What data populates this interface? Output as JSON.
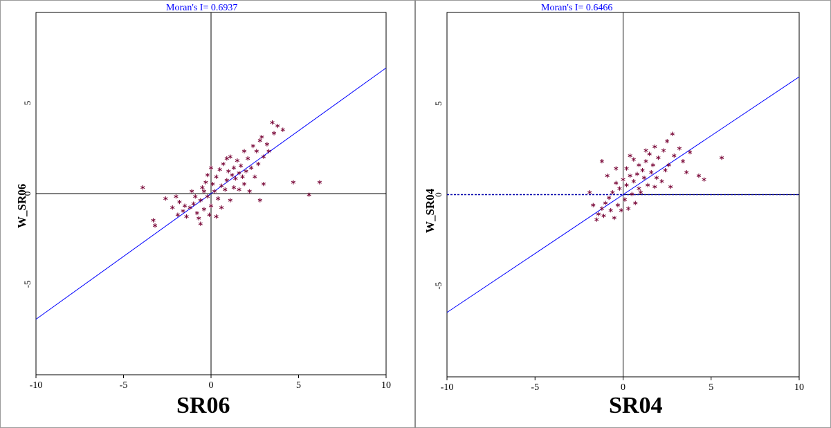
{
  "chart_data": [
    {
      "type": "scatter",
      "title": "Moran's I= 0.6937",
      "xlabel": "SR06",
      "ylabel": "W_SR06",
      "xlim": [
        -10,
        10
      ],
      "ylim": [
        -10,
        10
      ],
      "x_ticks": [
        "-10",
        "-5",
        "0",
        "5",
        "10"
      ],
      "y_ticks": [
        "-5",
        "0",
        "5"
      ],
      "regression": {
        "slope": 0.6937,
        "intercept": 0
      },
      "zero_line_style": "solid",
      "colors": {
        "points": "#7b0a3a",
        "regression": "#0000ff",
        "axes": "#000000"
      },
      "series": [
        {
          "points": [
            [
              3.5,
              3.9
            ],
            [
              3.8,
              3.7
            ],
            [
              2.9,
              3.1
            ],
            [
              4.1,
              3.5
            ],
            [
              3.2,
              2.7
            ],
            [
              2.6,
              2.3
            ],
            [
              3.0,
              2.0
            ],
            [
              2.4,
              2.6
            ],
            [
              2.1,
              1.9
            ],
            [
              1.9,
              2.3
            ],
            [
              1.7,
              1.5
            ],
            [
              1.5,
              1.8
            ],
            [
              2.0,
              1.2
            ],
            [
              1.8,
              0.9
            ],
            [
              1.3,
              1.4
            ],
            [
              1.2,
              1.0
            ],
            [
              1.0,
              1.2
            ],
            [
              0.9,
              0.7
            ],
            [
              1.4,
              0.8
            ],
            [
              1.6,
              1.1
            ],
            [
              2.3,
              1.4
            ],
            [
              2.7,
              1.6
            ],
            [
              3.3,
              2.3
            ],
            [
              2.8,
              2.9
            ],
            [
              3.6,
              3.3
            ],
            [
              4.7,
              0.6
            ],
            [
              6.2,
              0.6
            ],
            [
              5.6,
              -0.1
            ],
            [
              3.0,
              0.5
            ],
            [
              2.2,
              0.1
            ],
            [
              2.8,
              -0.4
            ],
            [
              -3.9,
              0.3
            ],
            [
              -3.2,
              -1.8
            ],
            [
              -3.3,
              -1.5
            ],
            [
              -2.6,
              -0.3
            ],
            [
              -2.0,
              -0.2
            ],
            [
              -1.8,
              -0.5
            ],
            [
              -1.6,
              -1.0
            ],
            [
              -1.4,
              -1.3
            ],
            [
              -1.2,
              -0.8
            ],
            [
              -1.0,
              -0.6
            ],
            [
              -0.8,
              -1.1
            ],
            [
              -0.6,
              -0.4
            ],
            [
              -0.4,
              -0.9
            ],
            [
              -0.2,
              -0.2
            ],
            [
              0.0,
              -0.7
            ],
            [
              0.2,
              0.1
            ],
            [
              0.4,
              -0.3
            ],
            [
              0.6,
              0.4
            ],
            [
              0.8,
              0.2
            ],
            [
              -0.5,
              0.3
            ],
            [
              -0.3,
              0.6
            ],
            [
              0.1,
              0.5
            ],
            [
              0.3,
              0.9
            ],
            [
              0.5,
              1.3
            ],
            [
              0.7,
              1.6
            ],
            [
              -0.7,
              -1.4
            ],
            [
              -1.5,
              -0.7
            ],
            [
              -0.9,
              -0.2
            ],
            [
              -0.1,
              -1.2
            ],
            [
              0.6,
              -0.8
            ],
            [
              1.1,
              -0.4
            ],
            [
              1.3,
              0.3
            ],
            [
              1.9,
              0.5
            ],
            [
              -1.1,
              0.1
            ],
            [
              -0.2,
              1.0
            ],
            [
              0.9,
              1.9
            ],
            [
              1.6,
              0.2
            ],
            [
              -0.6,
              -1.7
            ],
            [
              0.3,
              -1.3
            ],
            [
              -2.2,
              -0.8
            ],
            [
              -1.9,
              -1.2
            ],
            [
              2.5,
              0.9
            ],
            [
              1.1,
              2.0
            ],
            [
              0.0,
              1.4
            ],
            [
              -0.4,
              0.1
            ]
          ]
        }
      ]
    },
    {
      "type": "scatter",
      "title": "Moran's I= 0.6466",
      "xlabel": "SR04",
      "ylabel": "W_SR04",
      "xlim": [
        -10,
        10
      ],
      "ylim": [
        -10,
        10
      ],
      "x_ticks": [
        "-10",
        "-5",
        "0",
        "5",
        "10"
      ],
      "y_ticks": [
        "-5",
        "0",
        "5"
      ],
      "regression": {
        "slope": 0.6466,
        "intercept": 0
      },
      "zero_line_style": "dashed",
      "colors": {
        "points": "#7b0a3a",
        "regression": "#0000ff",
        "axes": "#000000",
        "zero_line": "#0000aa"
      },
      "series": [
        {
          "points": [
            [
              2.8,
              3.3
            ],
            [
              2.5,
              2.9
            ],
            [
              3.2,
              2.5
            ],
            [
              2.9,
              2.1
            ],
            [
              2.3,
              2.4
            ],
            [
              2.0,
              2.0
            ],
            [
              1.8,
              2.6
            ],
            [
              1.5,
              2.2
            ],
            [
              1.7,
              1.6
            ],
            [
              1.3,
              1.8
            ],
            [
              1.1,
              1.3
            ],
            [
              0.9,
              1.6
            ],
            [
              1.2,
              0.9
            ],
            [
              0.8,
              1.1
            ],
            [
              0.6,
              0.7
            ],
            [
              0.4,
              1.0
            ],
            [
              0.2,
              0.5
            ],
            [
              0.0,
              0.8
            ],
            [
              -0.2,
              0.3
            ],
            [
              -0.4,
              0.6
            ],
            [
              -0.6,
              0.1
            ],
            [
              -0.8,
              -0.2
            ],
            [
              -1.0,
              -0.5
            ],
            [
              -1.2,
              -0.8
            ],
            [
              -1.4,
              -1.1
            ],
            [
              -1.5,
              -1.4
            ],
            [
              -1.1,
              -1.2
            ],
            [
              -0.7,
              -0.9
            ],
            [
              -0.3,
              -0.6
            ],
            [
              0.1,
              -0.3
            ],
            [
              0.5,
              0.0
            ],
            [
              0.9,
              0.3
            ],
            [
              1.4,
              0.5
            ],
            [
              1.9,
              0.9
            ],
            [
              2.4,
              1.3
            ],
            [
              3.4,
              1.8
            ],
            [
              3.6,
              1.2
            ],
            [
              4.3,
              1.0
            ],
            [
              4.6,
              0.8
            ],
            [
              5.6,
              2.0
            ],
            [
              3.8,
              2.3
            ],
            [
              2.6,
              1.6
            ],
            [
              1.6,
              1.2
            ],
            [
              -0.4,
              1.4
            ],
            [
              -1.2,
              1.8
            ],
            [
              -0.9,
              1.0
            ],
            [
              -0.5,
              -1.3
            ],
            [
              0.3,
              -0.8
            ],
            [
              0.7,
              -0.5
            ],
            [
              1.0,
              0.1
            ],
            [
              -1.7,
              -0.6
            ],
            [
              -1.9,
              0.1
            ],
            [
              0.6,
              1.9
            ],
            [
              0.2,
              1.4
            ],
            [
              1.8,
              0.4
            ],
            [
              2.2,
              0.7
            ],
            [
              -0.1,
              -0.9
            ],
            [
              1.3,
              2.4
            ],
            [
              0.4,
              2.1
            ],
            [
              2.7,
              0.4
            ]
          ]
        }
      ]
    }
  ]
}
